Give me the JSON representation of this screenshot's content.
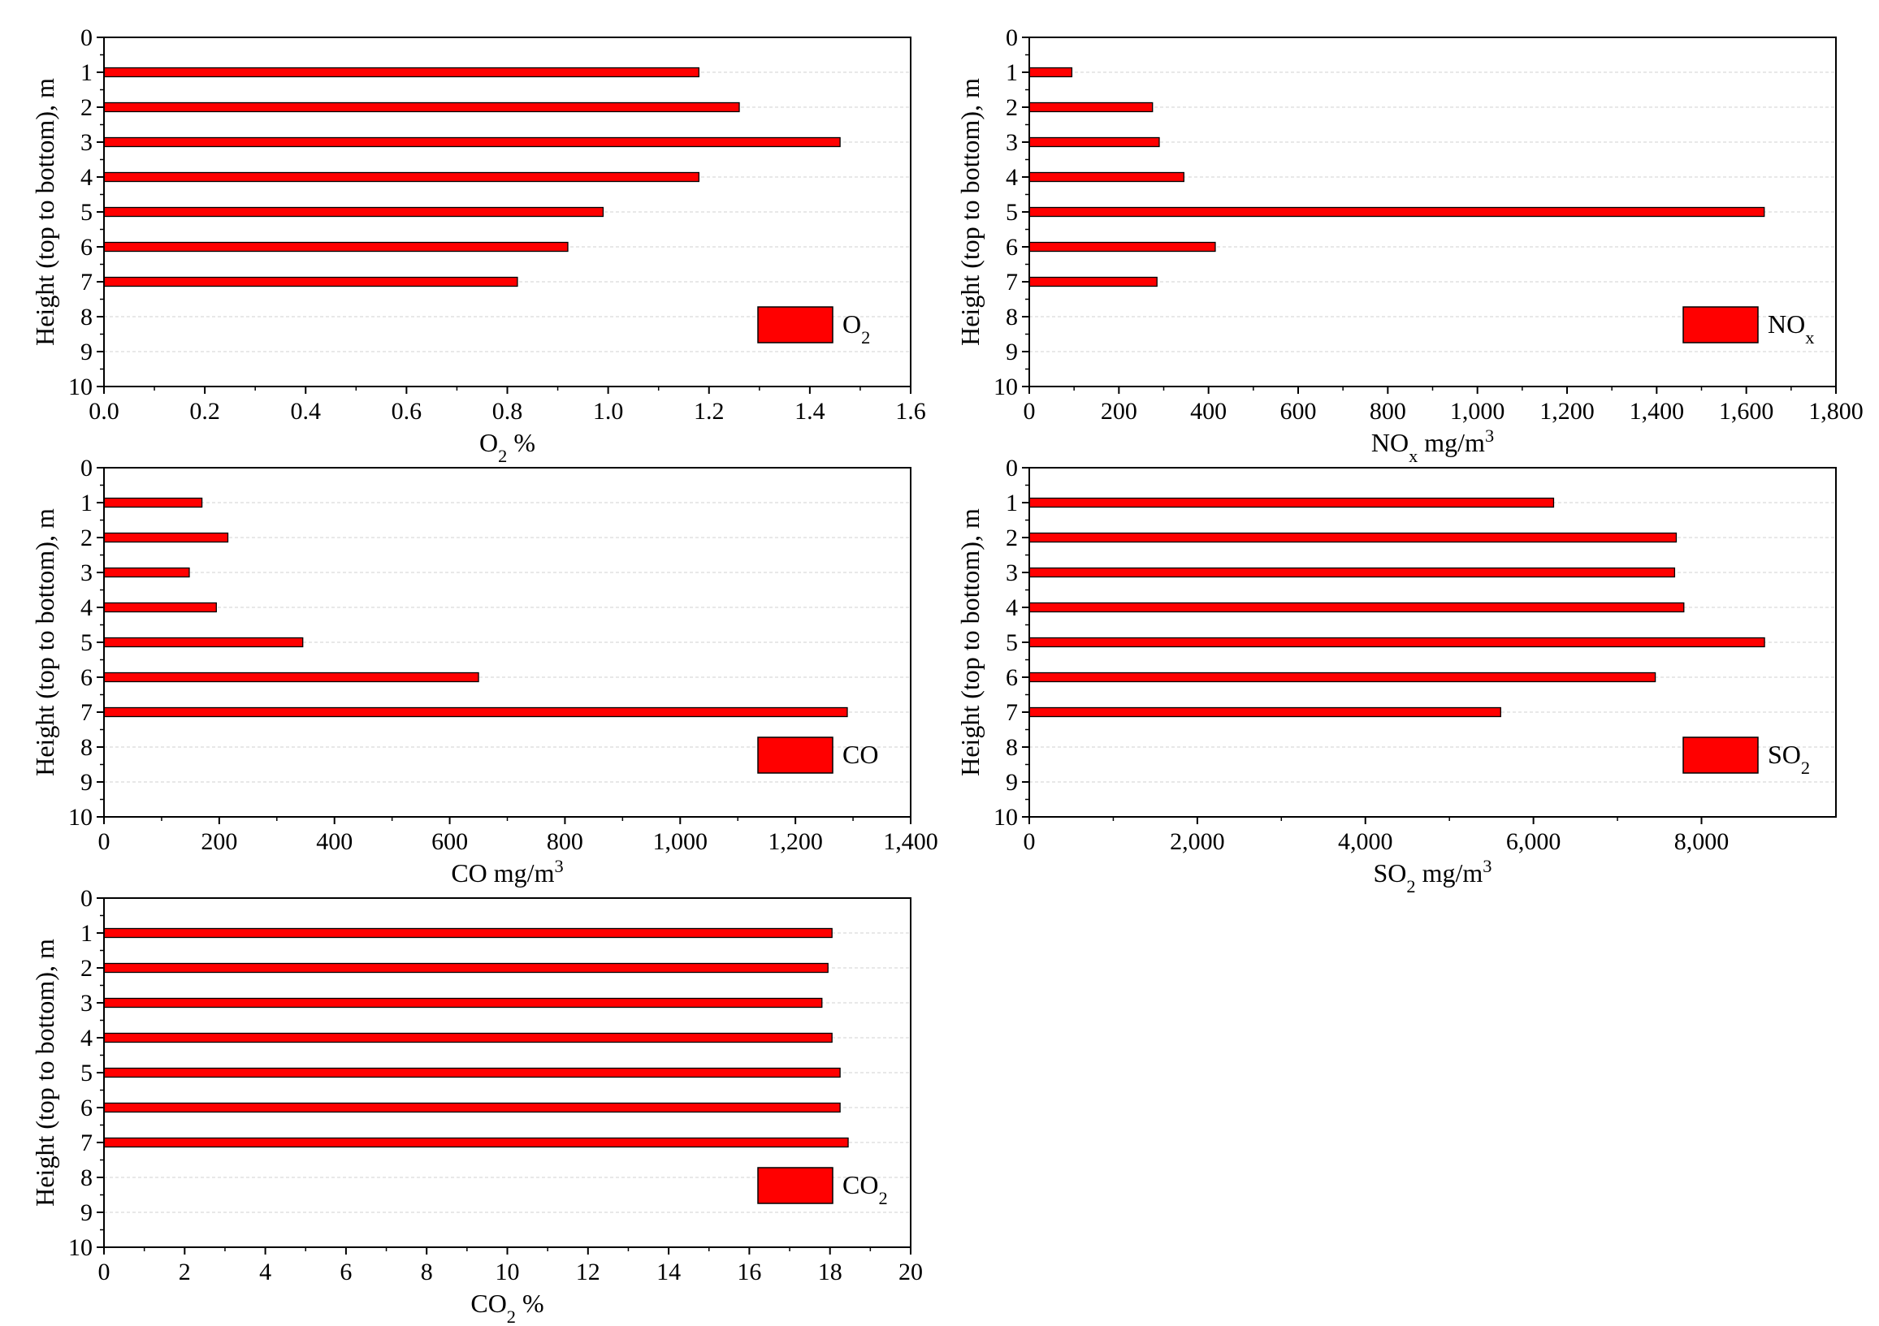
{
  "colors": {
    "bar": "#ff0000",
    "bar_edge": "#000000",
    "axis": "#000000",
    "grid": "#d9d9d9"
  },
  "chart_data": [
    {
      "type": "bar",
      "orientation": "horizontal",
      "y_categories": [
        1,
        2,
        3,
        4,
        5,
        6,
        7
      ],
      "values": [
        1.18,
        1.26,
        1.46,
        1.18,
        0.99,
        0.92,
        0.82
      ],
      "ylabel": "Height (top to bottom), m",
      "xlabel": {
        "base": "O",
        "sub": "2",
        "tail": " %"
      },
      "legend": {
        "base": "O",
        "sub": "2",
        "sup": ""
      },
      "legend_position": "bottom-right",
      "ylim": [
        0,
        10
      ],
      "y_ticks": [
        "0",
        "1",
        "2",
        "3",
        "4",
        "5",
        "6",
        "7",
        "8",
        "9",
        "10"
      ],
      "xlim": [
        0,
        1.6
      ],
      "x_ticks": [
        0,
        0.2,
        0.4,
        0.6,
        0.8,
        1.0,
        1.2,
        1.4,
        1.6
      ],
      "x_tick_labels": [
        "0.0",
        "0.2",
        "0.4",
        "0.6",
        "0.8",
        "1.0",
        "1.2",
        "1.4",
        "1.6"
      ],
      "grid": true
    },
    {
      "type": "bar",
      "orientation": "horizontal",
      "y_categories": [
        1,
        2,
        3,
        4,
        5,
        6,
        7
      ],
      "values": [
        95,
        275,
        290,
        345,
        1640,
        415,
        285
      ],
      "ylabel": "Height (top to bottom), m",
      "xlabel": {
        "base": "NO",
        "sub": "x",
        "tail": " mg/m",
        "sup": "3"
      },
      "legend": {
        "base": "NO",
        "sub": "x",
        "sup": ""
      },
      "legend_position": "bottom-right",
      "ylim": [
        0,
        10
      ],
      "y_ticks": [
        "0",
        "1",
        "2",
        "3",
        "4",
        "5",
        "6",
        "7",
        "8",
        "9",
        "10"
      ],
      "xlim": [
        0,
        1800
      ],
      "x_ticks": [
        0,
        200,
        400,
        600,
        800,
        1000,
        1200,
        1400,
        1600,
        1800
      ],
      "x_tick_labels": [
        "0",
        "200",
        "400",
        "600",
        "800",
        "1,000",
        "1,200",
        "1,400",
        "1,600",
        "1,800"
      ],
      "grid": true
    },
    {
      "type": "bar",
      "orientation": "horizontal",
      "y_categories": [
        1,
        2,
        3,
        4,
        5,
        6,
        7
      ],
      "values": [
        170,
        215,
        148,
        195,
        345,
        650,
        1290
      ],
      "ylabel": "Height (top to bottom), m",
      "xlabel": {
        "base": "CO mg/m",
        "sub": "",
        "tail": "",
        "sup": "3"
      },
      "legend": {
        "base": "CO",
        "sub": "",
        "sup": ""
      },
      "legend_position": "bottom-right",
      "ylim": [
        0,
        10
      ],
      "y_ticks": [
        "0",
        "1",
        "2",
        "3",
        "4",
        "5",
        "6",
        "7",
        "8",
        "9",
        "10"
      ],
      "xlim": [
        0,
        1400
      ],
      "x_ticks": [
        0,
        200,
        400,
        600,
        800,
        1000,
        1200,
        1400
      ],
      "x_tick_labels": [
        "0",
        "200",
        "400",
        "600",
        "800",
        "1,000",
        "1,200",
        "1,400"
      ],
      "grid": true
    },
    {
      "type": "bar",
      "orientation": "horizontal",
      "y_categories": [
        1,
        2,
        3,
        4,
        5,
        6,
        7
      ],
      "values": [
        6240,
        7700,
        7680,
        7790,
        8750,
        7450,
        5610
      ],
      "ylabel": "Height (top to bottom), m",
      "xlabel": {
        "base": "SO",
        "sub": "2",
        "tail": " mg/m",
        "sup": "3"
      },
      "legend": {
        "base": "SO",
        "sub": "2",
        "sup": ""
      },
      "legend_position": "bottom-right",
      "ylim": [
        0,
        10
      ],
      "y_ticks": [
        "0",
        "1",
        "2",
        "3",
        "4",
        "5",
        "6",
        "7",
        "8",
        "9",
        "10"
      ],
      "xlim": [
        0,
        9600
      ],
      "x_ticks": [
        0,
        2000,
        4000,
        6000,
        8000
      ],
      "x_tick_labels": [
        "0",
        "2,000",
        "4,000",
        "6,000",
        "8,000"
      ],
      "grid": true
    },
    {
      "type": "bar",
      "orientation": "horizontal",
      "y_categories": [
        1,
        2,
        3,
        4,
        5,
        6,
        7
      ],
      "values": [
        18.05,
        17.95,
        17.8,
        18.05,
        18.25,
        18.25,
        18.45
      ],
      "ylabel": "Height (top to bottom), m",
      "xlabel": {
        "base": "CO",
        "sub": "2",
        "tail": " %"
      },
      "legend": {
        "base": "CO",
        "sub": "2",
        "sup": ""
      },
      "legend_position": "bottom-right",
      "ylim": [
        0,
        10
      ],
      "y_ticks": [
        "0",
        "1",
        "2",
        "3",
        "4",
        "5",
        "6",
        "7",
        "8",
        "9",
        "10"
      ],
      "xlim": [
        0,
        20
      ],
      "x_ticks": [
        0,
        2,
        4,
        6,
        8,
        10,
        12,
        14,
        16,
        18,
        20
      ],
      "x_tick_labels": [
        "0",
        "2",
        "4",
        "6",
        "8",
        "10",
        "12",
        "14",
        "16",
        "18",
        "20"
      ],
      "grid": true
    }
  ]
}
